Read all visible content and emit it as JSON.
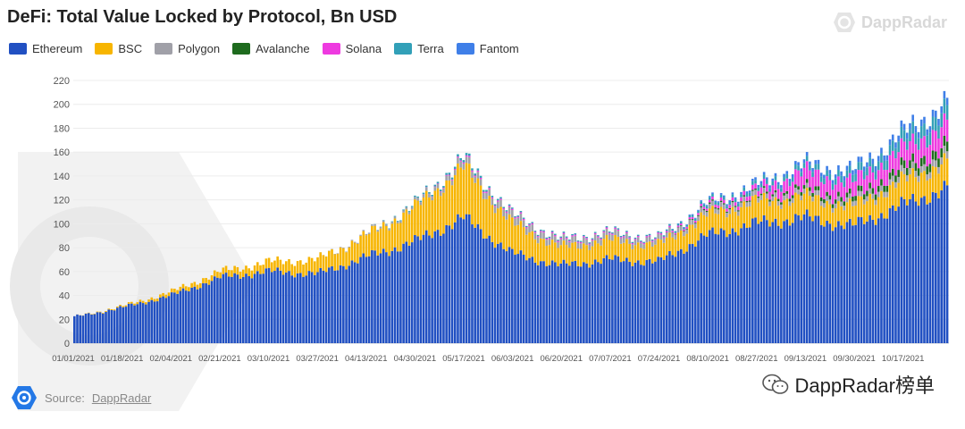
{
  "title": "DeFi: Total Value Locked by Protocol, Bn USD",
  "brand": {
    "name": "DappRadar",
    "icon": "dappradar-logo-icon"
  },
  "source": {
    "prefix": "Source:",
    "link": "DappRadar"
  },
  "wechat": {
    "account": "DappRadar榜单",
    "icon": "wechat-icon"
  },
  "chart_data": {
    "type": "bar",
    "stacked": true,
    "title": "DeFi: Total Value Locked by Protocol, Bn USD",
    "xlabel": "",
    "ylabel": "",
    "ylim": [
      0,
      220
    ],
    "yticks": [
      0,
      20,
      40,
      60,
      80,
      100,
      120,
      140,
      160,
      180,
      200,
      220
    ],
    "x_tick_labels": [
      "01/01/2021",
      "01/18/2021",
      "02/04/2021",
      "02/21/2021",
      "03/10/2021",
      "03/27/2021",
      "04/13/2021",
      "04/30/2021",
      "05/17/2021",
      "06/03/2021",
      "06/20/2021",
      "07/07/2021",
      "07/24/2021",
      "08/10/2021",
      "08/27/2021",
      "09/13/2021",
      "09/30/2021",
      "10/17/2021"
    ],
    "grid": true,
    "legend_position": "top-left",
    "anchor_day": [
      0,
      17,
      34,
      51,
      68,
      85,
      102,
      119,
      136,
      153,
      170,
      187,
      204,
      221,
      238,
      255,
      272,
      289,
      305
    ],
    "series": [
      {
        "name": "Ethereum",
        "color": "#2150c2",
        "anchor_values": [
          22,
          30,
          40,
          55,
          60,
          58,
          72,
          85,
          105,
          75,
          65,
          70,
          68,
          90,
          100,
          105,
          98,
          115,
          130
        ]
      },
      {
        "name": "BSC",
        "color": "#f7b500",
        "anchor_values": [
          0,
          1,
          3,
          5,
          8,
          12,
          18,
          28,
          42,
          25,
          15,
          16,
          14,
          17,
          18,
          17,
          16,
          20,
          22
        ]
      },
      {
        "name": "Polygon",
        "color": "#a0a0a8",
        "anchor_values": [
          0,
          0,
          0,
          0,
          0,
          0,
          1,
          2,
          5,
          6,
          5,
          5,
          4,
          4,
          4,
          4,
          4,
          5,
          6
        ]
      },
      {
        "name": "Avalanche",
        "color": "#1e6b1e",
        "anchor_values": [
          0,
          0,
          0,
          0,
          0,
          0,
          0,
          0,
          0,
          0,
          0,
          0,
          0,
          1,
          1,
          3,
          4,
          6,
          8
        ]
      },
      {
        "name": "Solana",
        "color": "#ee3ae0",
        "anchor_values": [
          0,
          0,
          0,
          0,
          0,
          0,
          0,
          0,
          1,
          1,
          1,
          1,
          1,
          2,
          4,
          14,
          12,
          15,
          18
        ]
      },
      {
        "name": "Terra",
        "color": "#32a0b8",
        "anchor_values": [
          0,
          0,
          0,
          0,
          0,
          0,
          0,
          1,
          2,
          1,
          1,
          1,
          1,
          2,
          3,
          4,
          6,
          9,
          12
        ]
      },
      {
        "name": "Fantom",
        "color": "#3f7fe8",
        "anchor_values": [
          0,
          0,
          0,
          0,
          0,
          0,
          0,
          0,
          0,
          0,
          0,
          0,
          0,
          1,
          2,
          3,
          4,
          5,
          6
        ]
      }
    ]
  }
}
